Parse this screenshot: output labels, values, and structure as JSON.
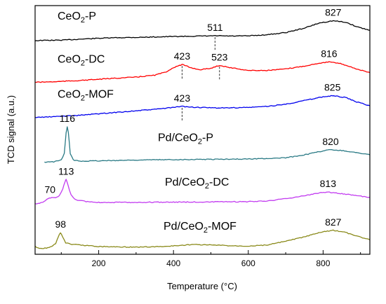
{
  "chart_data": {
    "type": "line",
    "title": "",
    "xlabel": "Temperature (°C)",
    "ylabel": "TCD signal (a.u.)",
    "xlim": [
      30,
      925
    ],
    "xticks": [
      200,
      400,
      600,
      800
    ],
    "yticks_shown": false,
    "grid": false,
    "legend": "none",
    "series": [
      {
        "label": "CeO",
        "label_sub": "2",
        "label_suffix": "-P",
        "color": "#000000",
        "baseline": 0.42,
        "points": [
          [
            30,
            0
          ],
          [
            60,
            0.2
          ],
          [
            100,
            0.3
          ],
          [
            150,
            1.0
          ],
          [
            200,
            1.6
          ],
          [
            250,
            2.0
          ],
          [
            300,
            2.2
          ],
          [
            350,
            2.5
          ],
          [
            400,
            2.8
          ],
          [
            450,
            3.0
          ],
          [
            500,
            3.2
          ],
          [
            511,
            3.3
          ],
          [
            550,
            3.1
          ],
          [
            600,
            3.2
          ],
          [
            650,
            4.0
          ],
          [
            700,
            5.5
          ],
          [
            750,
            8.5
          ],
          [
            790,
            12.0
          ],
          [
            827,
            13.5
          ],
          [
            860,
            12.5
          ],
          [
            890,
            9.5
          ],
          [
            925,
            7.0
          ]
        ],
        "peaks": [
          {
            "x": 511,
            "label": "511",
            "marker": true
          },
          {
            "x": 827,
            "label": "827",
            "marker": false
          }
        ]
      },
      {
        "label": "CeO",
        "label_sub": "2",
        "label_suffix": "-DC",
        "color": "#ff0000",
        "baseline": 0.29,
        "points": [
          [
            30,
            0
          ],
          [
            80,
            0.3
          ],
          [
            150,
            1.2
          ],
          [
            200,
            2.0
          ],
          [
            250,
            2.8
          ],
          [
            300,
            3.5
          ],
          [
            350,
            4.8
          ],
          [
            380,
            7.0
          ],
          [
            400,
            10.0
          ],
          [
            423,
            12.0
          ],
          [
            445,
            10.0
          ],
          [
            470,
            8.5
          ],
          [
            500,
            9.5
          ],
          [
            523,
            11.5
          ],
          [
            550,
            10.0
          ],
          [
            600,
            8.0
          ],
          [
            650,
            8.0
          ],
          [
            700,
            9.0
          ],
          [
            750,
            11.0
          ],
          [
            790,
            13.0
          ],
          [
            816,
            13.8
          ],
          [
            850,
            12.5
          ],
          [
            890,
            9.0
          ],
          [
            925,
            6.5
          ]
        ],
        "peaks": [
          {
            "x": 423,
            "label": "423",
            "marker": true
          },
          {
            "x": 523,
            "label": "523",
            "marker": true
          },
          {
            "x": 816,
            "label": "816",
            "marker": false
          }
        ]
      },
      {
        "label": "CeO",
        "label_sub": "2",
        "label_suffix": "-MOF",
        "color": "#0000ee",
        "baseline": 0.18,
        "points": [
          [
            30,
            0
          ],
          [
            80,
            0.5
          ],
          [
            150,
            1.5
          ],
          [
            200,
            2.5
          ],
          [
            250,
            3.5
          ],
          [
            300,
            4.5
          ],
          [
            350,
            5.5
          ],
          [
            400,
            6.8
          ],
          [
            423,
            7.5
          ],
          [
            450,
            7.0
          ],
          [
            500,
            6.5
          ],
          [
            550,
            6.5
          ],
          [
            600,
            6.8
          ],
          [
            650,
            7.5
          ],
          [
            700,
            9.0
          ],
          [
            750,
            11.5
          ],
          [
            800,
            14.0
          ],
          [
            825,
            14.8
          ],
          [
            860,
            13.5
          ],
          [
            890,
            10.5
          ],
          [
            925,
            8.0
          ]
        ],
        "peaks": [
          {
            "x": 423,
            "label": "423",
            "marker": true
          },
          {
            "x": 825,
            "label": "825",
            "marker": false
          }
        ]
      },
      {
        "label": "Pd/CeO",
        "label_sub": "2",
        "label_suffix": "-P",
        "color": "#2a7a85",
        "baseline": 0.04,
        "points": [
          [
            55,
            0
          ],
          [
            80,
            0.3
          ],
          [
            100,
            1.5
          ],
          [
            108,
            6.0
          ],
          [
            113,
            20.0
          ],
          [
            116,
            24.0
          ],
          [
            119,
            20.0
          ],
          [
            124,
            6.0
          ],
          [
            132,
            1.5
          ],
          [
            150,
            0.8
          ],
          [
            200,
            1.0
          ],
          [
            300,
            1.5
          ],
          [
            400,
            1.8
          ],
          [
            500,
            2.0
          ],
          [
            600,
            2.2
          ],
          [
            700,
            3.0
          ],
          [
            760,
            5.5
          ],
          [
            800,
            7.8
          ],
          [
            820,
            8.5
          ],
          [
            850,
            8.0
          ],
          [
            890,
            6.5
          ],
          [
            925,
            5.0
          ]
        ],
        "peaks": [
          {
            "x": 116,
            "label": "116",
            "marker": false
          },
          {
            "x": 820,
            "label": "820",
            "marker": false
          }
        ]
      },
      {
        "label": "Pd/CeO",
        "label_sub": "2",
        "label_suffix": "-DC",
        "color": "#c23cf0",
        "baseline": -0.09,
        "points": [
          [
            30,
            0
          ],
          [
            50,
            1.0
          ],
          [
            65,
            3.5
          ],
          [
            75,
            4.5
          ],
          [
            85,
            4.0
          ],
          [
            95,
            5.5
          ],
          [
            104,
            10.0
          ],
          [
            110,
            15.0
          ],
          [
            113,
            16.5
          ],
          [
            118,
            13.0
          ],
          [
            126,
            6.0
          ],
          [
            140,
            2.5
          ],
          [
            170,
            1.5
          ],
          [
            200,
            1.0
          ],
          [
            300,
            1.0
          ],
          [
            400,
            1.2
          ],
          [
            500,
            1.3
          ],
          [
            600,
            1.5
          ],
          [
            650,
            2.0
          ],
          [
            700,
            3.5
          ],
          [
            750,
            5.5
          ],
          [
            790,
            7.5
          ],
          [
            813,
            8.0
          ],
          [
            850,
            7.0
          ],
          [
            890,
            5.5
          ],
          [
            925,
            4.5
          ]
        ],
        "peaks": [
          {
            "x": 70,
            "label": "70",
            "marker": false
          },
          {
            "x": 113,
            "label": "113",
            "marker": false
          },
          {
            "x": 813,
            "label": "813",
            "marker": false
          }
        ]
      },
      {
        "label": "Pd/CeO",
        "label_sub": "2",
        "label_suffix": "-MOF",
        "color": "#8a8a1a",
        "baseline": -0.23,
        "points": [
          [
            30,
            1.5
          ],
          [
            45,
            0
          ],
          [
            60,
            0.5
          ],
          [
            75,
            1.5
          ],
          [
            85,
            3.5
          ],
          [
            92,
            8.0
          ],
          [
            98,
            11.0
          ],
          [
            104,
            8.0
          ],
          [
            112,
            4.0
          ],
          [
            125,
            3.0
          ],
          [
            150,
            2.5
          ],
          [
            200,
            1.5
          ],
          [
            300,
            1.0
          ],
          [
            380,
            1.5
          ],
          [
            450,
            2.8
          ],
          [
            500,
            2.5
          ],
          [
            550,
            2.0
          ],
          [
            600,
            1.8
          ],
          [
            650,
            2.5
          ],
          [
            700,
            5.0
          ],
          [
            750,
            8.0
          ],
          [
            800,
            11.5
          ],
          [
            827,
            12.5
          ],
          [
            860,
            11.0
          ],
          [
            890,
            8.5
          ],
          [
            925,
            6.0
          ]
        ],
        "peaks": [
          {
            "x": 98,
            "label": "98",
            "marker": false
          },
          {
            "x": 827,
            "label": "827",
            "marker": false
          }
        ]
      }
    ]
  },
  "style": {
    "axis_color": "#000000",
    "background": "#ffffff"
  }
}
